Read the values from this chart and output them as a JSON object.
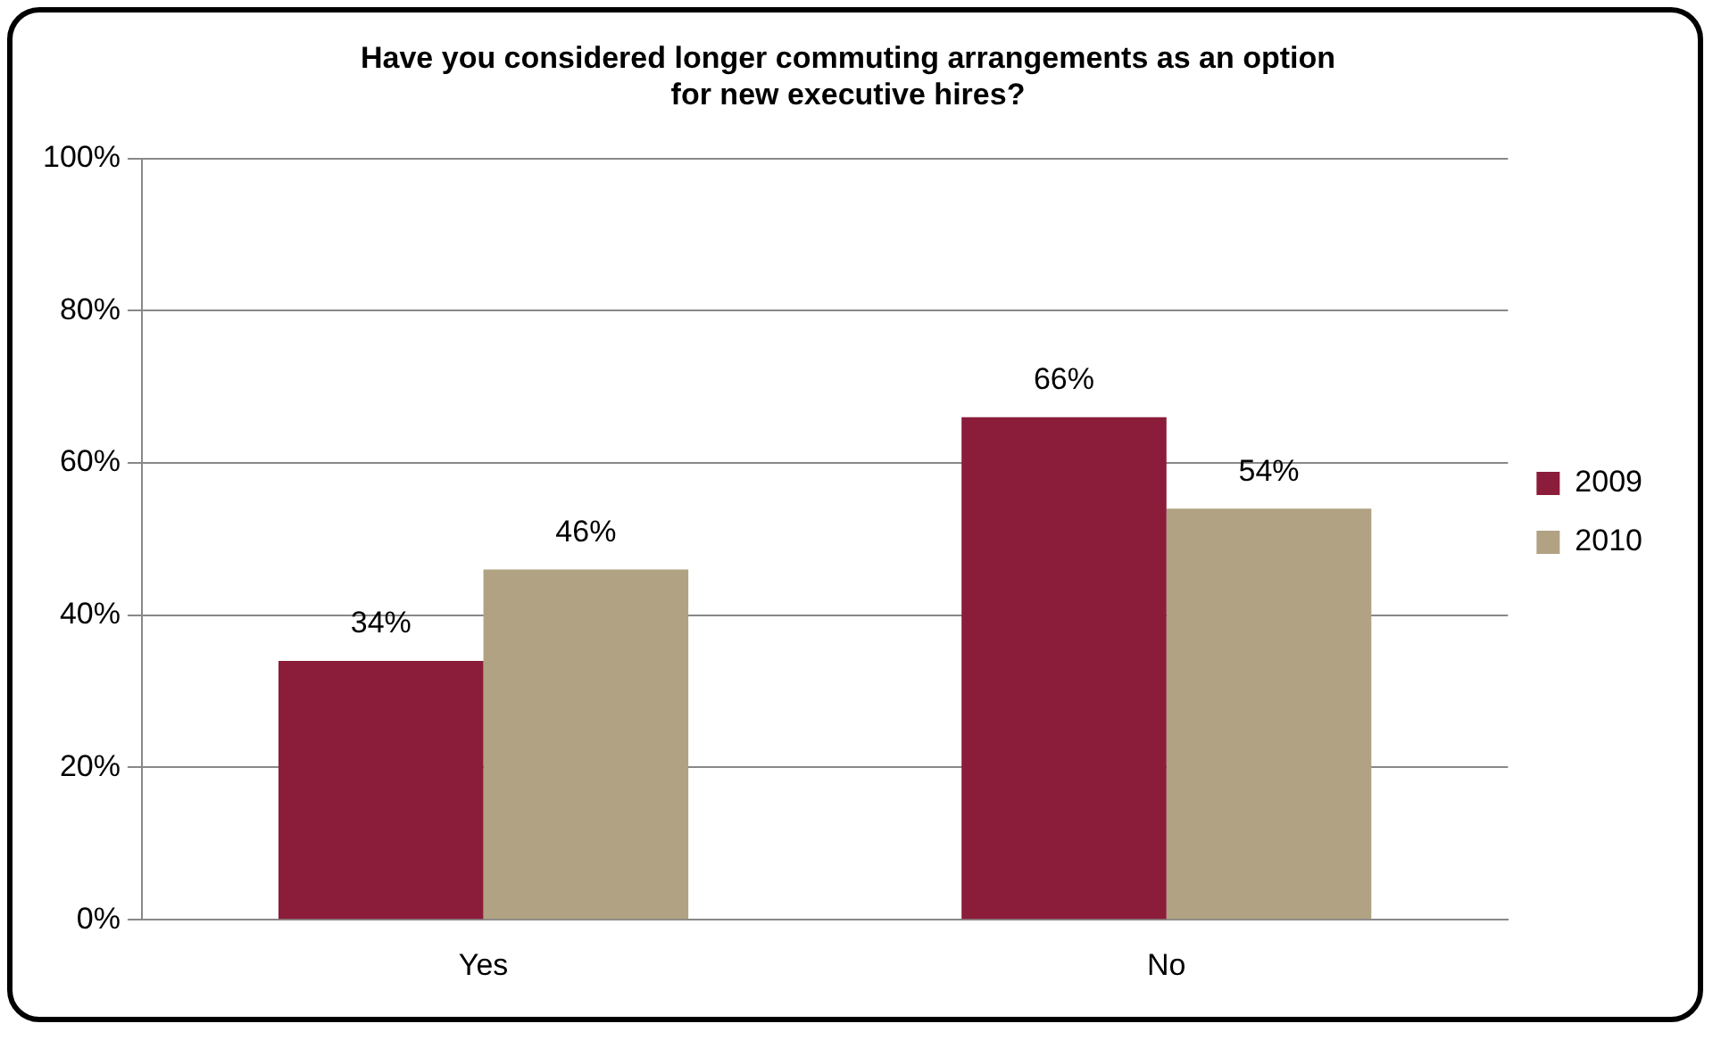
{
  "chart_data": {
    "type": "bar",
    "title": "Have you considered longer commuting arrangements as an option for new executive hires?",
    "categories": [
      "Yes",
      "No"
    ],
    "series": [
      {
        "name": "2009",
        "color": "#8b1c3a",
        "values": [
          34,
          66
        ],
        "value_labels": [
          "34%",
          "66%"
        ]
      },
      {
        "name": "2010",
        "color": "#b0a283",
        "values": [
          46,
          54
        ],
        "value_labels": [
          "46%",
          "54%"
        ]
      }
    ],
    "ylim": [
      0,
      100
    ],
    "yticks": [
      {
        "value": 0,
        "label": "0%"
      },
      {
        "value": 20,
        "label": "20%"
      },
      {
        "value": 40,
        "label": "40%"
      },
      {
        "value": 60,
        "label": "60%"
      },
      {
        "value": 80,
        "label": "80%"
      },
      {
        "value": 100,
        "label": "100%"
      }
    ],
    "grid": "y",
    "legend": "right"
  }
}
